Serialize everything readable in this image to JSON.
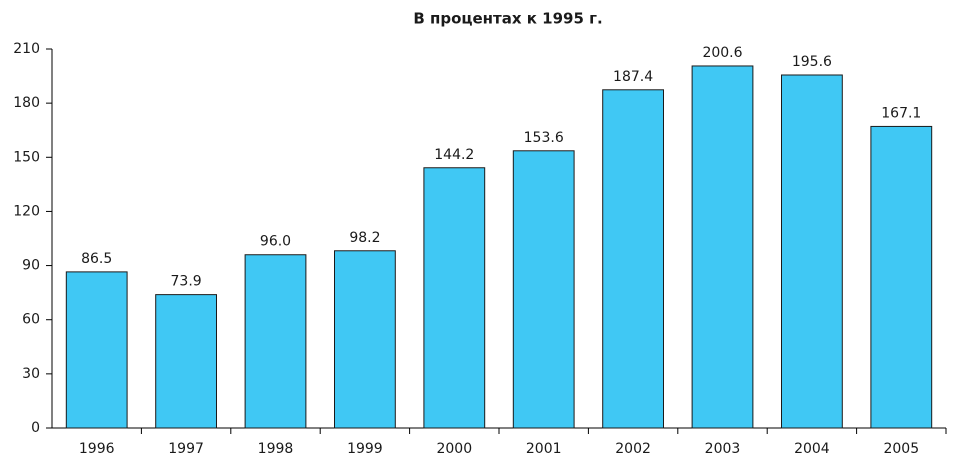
{
  "chart_data": {
    "type": "bar",
    "title": "В процентах к 1995 г.",
    "categories": [
      "1996",
      "1997",
      "1998",
      "1999",
      "2000",
      "2001",
      "2002",
      "2003",
      "2004",
      "2005"
    ],
    "values": [
      86.5,
      73.9,
      96.0,
      98.2,
      144.2,
      153.6,
      187.4,
      200.6,
      195.6,
      167.1
    ],
    "value_labels": [
      "86.5",
      "73.9",
      "96.0",
      "98.2",
      "144.2",
      "153.6",
      "187.4",
      "200.6",
      "195.6",
      "167.1"
    ],
    "color": "#40c8f4",
    "ylim": [
      0,
      210
    ],
    "yticks": [
      0,
      30,
      60,
      90,
      120,
      150,
      180,
      210
    ],
    "grid": false
  }
}
